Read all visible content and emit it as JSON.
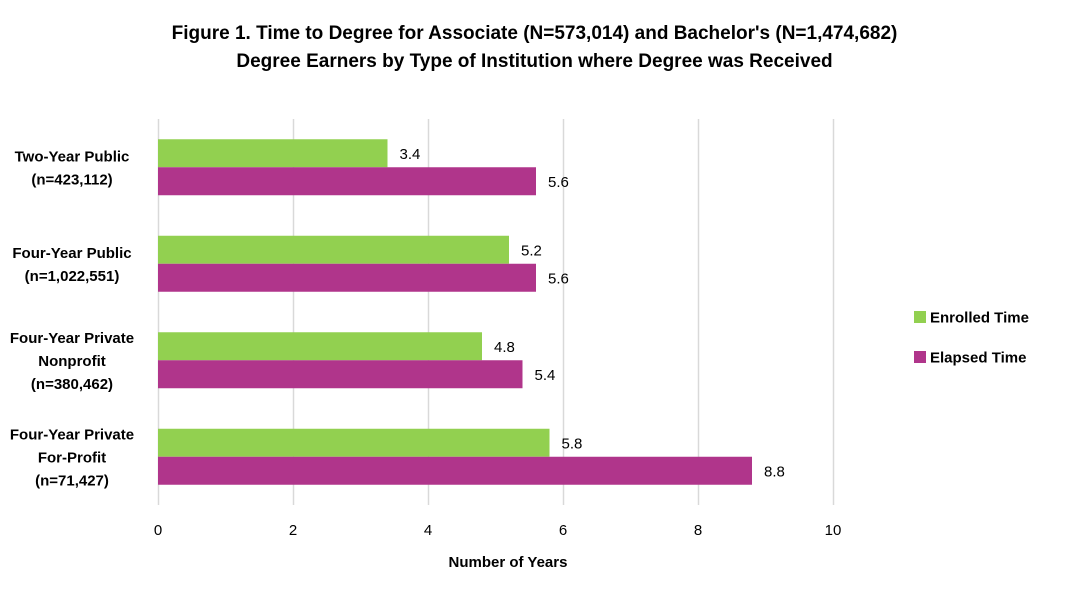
{
  "chart_data": {
    "type": "bar",
    "orientation": "horizontal",
    "title": [
      "Figure 1. Time to Degree for Associate (N=573,014) and Bachelor's (N=1,474,682)",
      "Degree Earners by Type of Institution where Degree was Received"
    ],
    "xlabel": "Number of Years",
    "ylabel": "",
    "xlim": [
      0,
      10
    ],
    "xticks": [
      0,
      2,
      4,
      6,
      8,
      10
    ],
    "grid": "vertical",
    "legend_position": "right",
    "categories": [
      [
        "Two-Year Public",
        "(n=423,112)"
      ],
      [
        "Four-Year Public",
        "(n=1,022,551)"
      ],
      [
        "Four-Year Private",
        "Nonprofit",
        "(n=380,462)"
      ],
      [
        "Four-Year Private",
        "For-Profit",
        "(n=71,427)"
      ]
    ],
    "series": [
      {
        "name": "Enrolled Time",
        "color": "#92d050",
        "values": [
          3.4,
          5.2,
          4.8,
          5.8
        ],
        "labels": [
          "3.4",
          "5.2",
          "4.8",
          "5.8"
        ]
      },
      {
        "name": "Elapsed Time",
        "color": "#b0358b",
        "values": [
          5.6,
          5.6,
          5.4,
          8.8
        ],
        "labels": [
          "5.6",
          "5.6",
          "5.4",
          "8.8"
        ]
      }
    ]
  }
}
